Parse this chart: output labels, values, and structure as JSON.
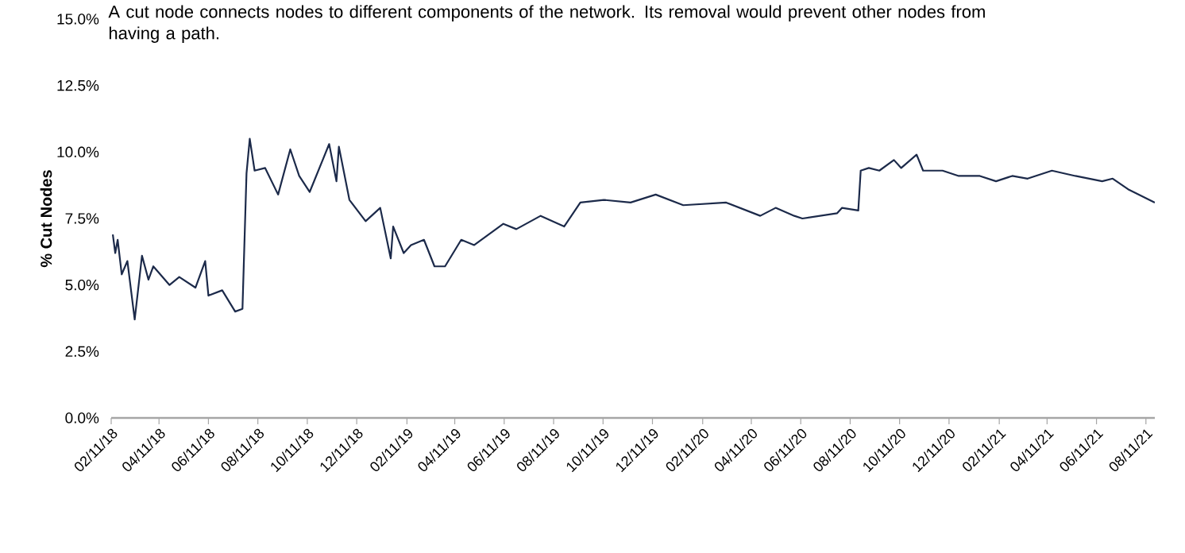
{
  "chart_data": {
    "type": "line",
    "subtitle": "A cut node connects nodes to different components of the network. Its removal would prevent other nodes from having a path.",
    "ylabel": "% Cut Nodes",
    "color": "#1c2a4a",
    "x": [
      "2018-02-13",
      "2018-02-16",
      "2018-02-19",
      "2018-02-24",
      "2018-03-03",
      "2018-03-12",
      "2018-03-21",
      "2018-03-29",
      "2018-04-04",
      "2018-04-24",
      "2018-05-06",
      "2018-05-26",
      "2018-06-07",
      "2018-06-11",
      "2018-06-28",
      "2018-07-14",
      "2018-07-23",
      "2018-07-28",
      "2018-08-01",
      "2018-08-07",
      "2018-08-20",
      "2018-09-05",
      "2018-09-20",
      "2018-10-01",
      "2018-10-14",
      "2018-10-30",
      "2018-11-07",
      "2018-11-16",
      "2018-11-19",
      "2018-12-02",
      "2018-12-22",
      "2019-01-09",
      "2019-01-22",
      "2019-01-25",
      "2019-02-07",
      "2019-02-16",
      "2019-03-04",
      "2019-03-17",
      "2019-03-30",
      "2019-04-19",
      "2019-05-05",
      "2019-06-10",
      "2019-06-26",
      "2019-07-26",
      "2019-08-24",
      "2019-09-13",
      "2019-10-12",
      "2019-11-14",
      "2019-12-15",
      "2020-01-18",
      "2020-03-11",
      "2020-04-22",
      "2020-05-11",
      "2020-06-03",
      "2020-06-13",
      "2020-07-26",
      "2020-08-01",
      "2020-08-21",
      "2020-08-24",
      "2020-09-03",
      "2020-09-16",
      "2020-10-04",
      "2020-10-13",
      "2020-11-01",
      "2020-11-09",
      "2020-12-03",
      "2020-12-23",
      "2021-01-18",
      "2021-02-07",
      "2021-02-27",
      "2021-03-18",
      "2021-04-17",
      "2021-05-16",
      "2021-06-18",
      "2021-07-01",
      "2021-07-20",
      "2021-08-22"
    ],
    "values": [
      6.9,
      6.2,
      6.7,
      5.4,
      5.9,
      3.7,
      6.1,
      5.2,
      5.7,
      5.0,
      5.3,
      4.9,
      5.9,
      4.6,
      4.8,
      4.0,
      4.1,
      9.2,
      10.5,
      9.3,
      9.4,
      8.4,
      10.1,
      9.1,
      8.5,
      9.7,
      10.3,
      8.9,
      10.2,
      8.2,
      7.4,
      7.9,
      6.0,
      7.2,
      6.2,
      6.5,
      6.7,
      5.7,
      5.7,
      6.7,
      6.5,
      7.3,
      7.1,
      7.6,
      7.2,
      8.1,
      8.2,
      8.1,
      8.4,
      8.0,
      8.1,
      7.6,
      7.9,
      7.6,
      7.5,
      7.7,
      7.9,
      7.8,
      9.3,
      9.4,
      9.3,
      9.7,
      9.4,
      9.9,
      9.3,
      9.3,
      9.1,
      9.1,
      8.9,
      9.1,
      9.0,
      9.3,
      9.1,
      8.9,
      9.0,
      8.6,
      8.1
    ],
    "xlim": [
      "2018-02-11",
      "2021-08-22"
    ],
    "ylim": [
      0,
      15
    ],
    "xticks": [
      {
        "value": "2018-02-11",
        "label": "02/11/18"
      },
      {
        "value": "2018-04-11",
        "label": "04/11/18"
      },
      {
        "value": "2018-06-11",
        "label": "06/11/18"
      },
      {
        "value": "2018-08-11",
        "label": "08/11/18"
      },
      {
        "value": "2018-10-11",
        "label": "10/11/18"
      },
      {
        "value": "2018-12-11",
        "label": "12/11/18"
      },
      {
        "value": "2019-02-11",
        "label": "02/11/19"
      },
      {
        "value": "2019-04-11",
        "label": "04/11/19"
      },
      {
        "value": "2019-06-11",
        "label": "06/11/19"
      },
      {
        "value": "2019-08-11",
        "label": "08/11/19"
      },
      {
        "value": "2019-10-11",
        "label": "10/11/19"
      },
      {
        "value": "2019-12-11",
        "label": "12/11/19"
      },
      {
        "value": "2020-02-11",
        "label": "02/11/20"
      },
      {
        "value": "2020-04-11",
        "label": "04/11/20"
      },
      {
        "value": "2020-06-11",
        "label": "06/11/20"
      },
      {
        "value": "2020-08-11",
        "label": "08/11/20"
      },
      {
        "value": "2020-10-11",
        "label": "10/11/20"
      },
      {
        "value": "2020-12-11",
        "label": "12/11/20"
      },
      {
        "value": "2021-02-11",
        "label": "02/11/21"
      },
      {
        "value": "2021-04-11",
        "label": "04/11/21"
      },
      {
        "value": "2021-06-11",
        "label": "06/11/21"
      },
      {
        "value": "2021-08-11",
        "label": "08/11/21"
      }
    ],
    "yticks": [
      {
        "value": 0,
        "label": "0.0%"
      },
      {
        "value": 2.5,
        "label": "2.5%"
      },
      {
        "value": 5,
        "label": "5.0%"
      },
      {
        "value": 7.5,
        "label": "7.5%"
      },
      {
        "value": 10,
        "label": "10.0%"
      },
      {
        "value": 12.5,
        "label": "12.5%"
      },
      {
        "value": 15,
        "label": "15.0%"
      }
    ]
  }
}
